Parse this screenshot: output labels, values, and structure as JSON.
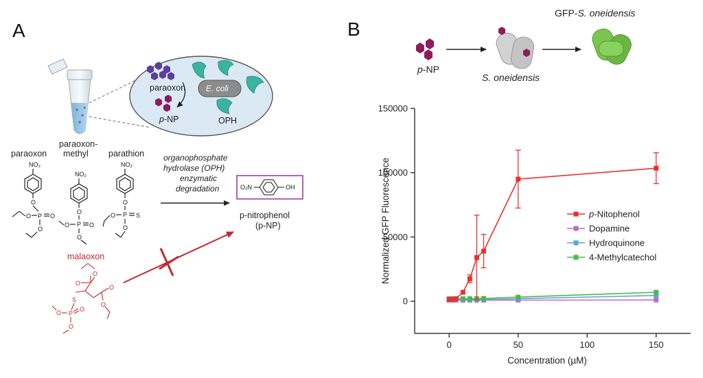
{
  "panel_a": {
    "letter": "A",
    "bubble": {
      "paraoxon": "paraoxon",
      "ecoli": "E. coli",
      "pnp_prefix": "p",
      "pnp_suffix": "-NP",
      "oph": "OPH"
    },
    "compounds": {
      "paraoxon": "paraoxon",
      "paraoxon_methyl_1": "paraoxon-",
      "paraoxon_methyl_2": "methyl",
      "parathion": "parathion"
    },
    "enzyme_text": [
      "organophosphate",
      "hydrolase (OPH)",
      "enzymatic",
      "degradation"
    ],
    "product": {
      "line1": "p-nitrophenol",
      "line2": "(p-NP)",
      "no2": "O₂N",
      "oh": "OH"
    },
    "malaoxon": "malaoxon",
    "atoms": {
      "no2": "NO₂",
      "o": "O",
      "p": "P",
      "s": "S"
    }
  },
  "panel_b": {
    "letter": "B",
    "schematic": {
      "input_prefix": "p",
      "input_suffix": "-NP",
      "organism": "S. oneidensis",
      "output_prefix": "GFP-",
      "output_italic": "S. oneidensis"
    },
    "colors": {
      "red": "#e8312f",
      "magenta": "#c06bc6",
      "blue": "#5aa4dc",
      "green": "#4cb84c",
      "hexagon": "#8e1c5c",
      "cell_gray": "#cfcfcf",
      "cell_green": "#7cc451"
    }
  },
  "chart_data": {
    "type": "line",
    "xlabel": "Concentration (µM)",
    "ylabel": "Normalized GFP Fluorescence",
    "xlim": [
      -25,
      175
    ],
    "ylim": [
      -25000,
      150000
    ],
    "xticks": [
      0,
      50,
      100,
      150
    ],
    "yticks": [
      0,
      50000,
      100000,
      150000
    ],
    "xtick_labels": [
      "0",
      "50",
      "100",
      "150"
    ],
    "ytick_labels": [
      "0",
      "50000",
      "100000",
      "150000"
    ],
    "legend_position": "right",
    "series": [
      {
        "name": "p-Nitophenol",
        "color": "#e8312f",
        "x": [
          0,
          2.5,
          5,
          10,
          15,
          20,
          25,
          50,
          150
        ],
        "y": [
          1500,
          1500,
          2000,
          7000,
          17500,
          34000,
          39000,
          95000,
          103500
        ],
        "err": [
          500,
          500,
          800,
          1500,
          3000,
          33000,
          13000,
          22500,
          12000
        ]
      },
      {
        "name": "Dopamine",
        "color": "#c06bc6",
        "x": [
          0,
          2.5,
          5,
          10,
          15,
          20,
          25,
          50,
          150
        ],
        "y": [
          800,
          800,
          800,
          800,
          800,
          800,
          800,
          900,
          1000
        ]
      },
      {
        "name": "Hydroquinone",
        "color": "#5aa4dc",
        "x": [
          0,
          2.5,
          5,
          10,
          15,
          20,
          25,
          50,
          150
        ],
        "y": [
          1200,
          1200,
          1200,
          1200,
          1200,
          1300,
          1400,
          2000,
          4500
        ]
      },
      {
        "name": "4-Methylcatechol",
        "color": "#4cb84c",
        "x": [
          0,
          2.5,
          5,
          10,
          15,
          20,
          25,
          50,
          150
        ],
        "y": [
          2000,
          2000,
          2000,
          2000,
          2000,
          2100,
          2200,
          3200,
          7000
        ]
      }
    ]
  }
}
